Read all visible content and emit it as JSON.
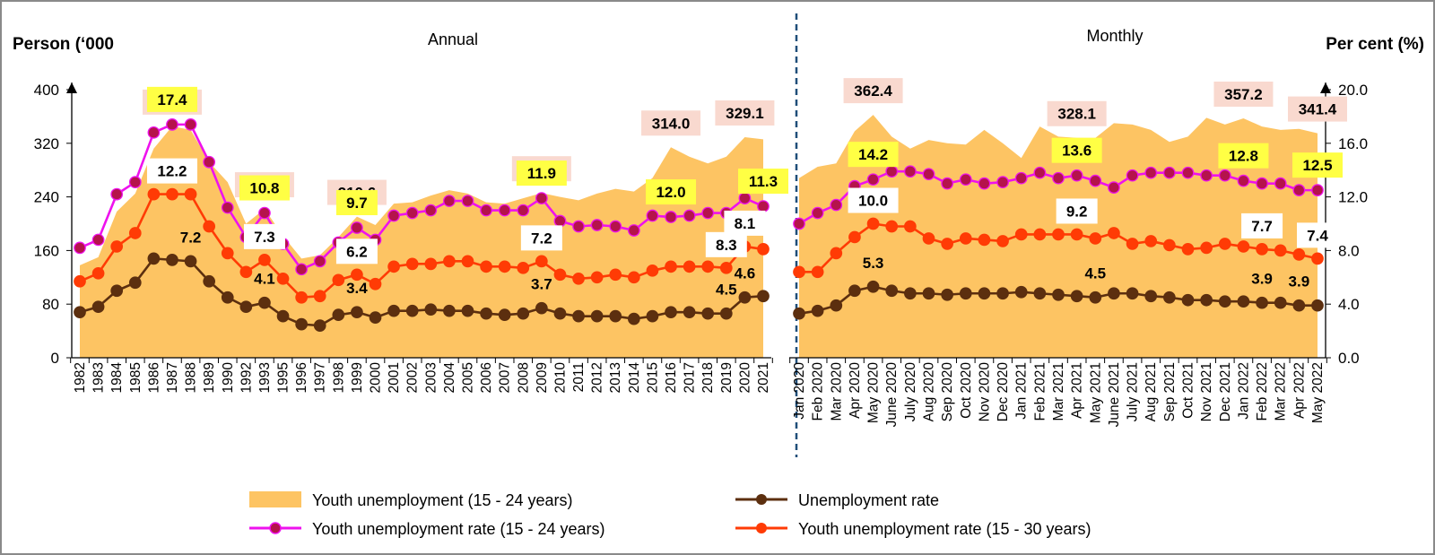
{
  "chart_data": {
    "type": "line",
    "section_titles": {
      "annual": "Annual",
      "monthly": "Monthly"
    },
    "left_axis": {
      "label": "Person  (‘000",
      "ylim": [
        0,
        400
      ],
      "ticks": [
        "0",
        "80",
        "160",
        "240",
        "320",
        "400"
      ]
    },
    "right_axis": {
      "label": "Per cent (%)",
      "ylim": [
        0,
        20
      ],
      "ticks": [
        "0.0",
        "4.0",
        "8.0",
        "12.0",
        "16.0",
        "20.0"
      ]
    },
    "annual": {
      "categories": [
        "1982",
        "1983",
        "1984",
        "1985",
        "1986",
        "1987",
        "1988",
        "1989",
        "1990",
        "1992",
        "1993",
        "1995",
        "1996",
        "1997",
        "1998",
        "1999",
        "2000",
        "2001",
        "2002",
        "2003",
        "2004",
        "2005",
        "2006",
        "2007",
        "2008",
        "2009",
        "2010",
        "2011",
        "2012",
        "2013",
        "2014",
        "2015",
        "2016",
        "2017",
        "2018",
        "2019",
        "2020",
        "2021"
      ],
      "youth_unemployment": [
        138,
        150,
        218,
        245,
        312,
        345.3,
        340,
        292,
        262,
        200,
        222,
        182,
        148,
        153,
        180,
        210.6,
        198,
        230,
        232,
        242,
        250,
        245,
        232,
        230,
        238,
        245.9,
        240,
        235,
        245,
        252,
        248,
        268,
        314,
        300,
        290,
        300,
        329.1,
        326
      ],
      "unemployment_rate": [
        3.4,
        3.8,
        5.0,
        5.6,
        7.4,
        7.3,
        7.2,
        5.7,
        4.5,
        3.8,
        4.1,
        3.1,
        2.5,
        2.4,
        3.2,
        3.4,
        3.0,
        3.5,
        3.5,
        3.6,
        3.5,
        3.5,
        3.3,
        3.2,
        3.3,
        3.7,
        3.3,
        3.1,
        3.1,
        3.1,
        2.9,
        3.1,
        3.4,
        3.4,
        3.3,
        3.3,
        4.5,
        4.6
      ],
      "youth_rate_15_24": [
        8.2,
        8.8,
        12.2,
        13.1,
        16.8,
        17.4,
        17.4,
        14.6,
        11.2,
        9.0,
        10.8,
        8.5,
        6.6,
        7.2,
        8.6,
        9.7,
        8.8,
        10.6,
        10.8,
        11.0,
        11.7,
        11.7,
        11.0,
        11.0,
        11.0,
        11.9,
        10.2,
        9.8,
        9.9,
        9.8,
        9.5,
        10.6,
        10.5,
        10.6,
        10.8,
        10.8,
        11.9,
        11.3
      ],
      "youth_rate_15_30": [
        5.7,
        6.3,
        8.3,
        9.3,
        12.2,
        12.2,
        12.2,
        9.8,
        7.8,
        6.4,
        7.3,
        5.9,
        4.5,
        4.6,
        5.8,
        6.2,
        5.5,
        6.8,
        7.0,
        7.0,
        7.2,
        7.2,
        6.8,
        6.8,
        6.7,
        7.2,
        6.2,
        5.9,
        6.0,
        6.2,
        6.0,
        6.5,
        6.8,
        6.8,
        6.8,
        6.7,
        8.3,
        8.1
      ]
    },
    "monthly": {
      "categories": [
        "Jan 2020",
        "Feb 2020",
        "Mar 2020",
        "Apr 2020",
        "May 2020",
        "June 2020",
        "July 2020",
        "Aug 2020",
        "Sep 2020",
        "Oct 2020",
        "Nov 2020",
        "Dec 2020",
        "Jan 2021",
        "Feb 2021",
        "Mar 2021",
        "Apr 2021",
        "May 2021",
        "June 2021",
        "July 2021",
        "Aug 2021",
        "Sep 2021",
        "Oct 2021",
        "Nov 2021",
        "Dec 2021",
        "Jan 2022",
        "Feb 2022",
        "Mar 2022",
        "Apr 2022",
        "May 2022"
      ],
      "youth_unemployment": [
        268,
        285,
        290,
        338,
        362.4,
        330,
        312,
        325,
        320,
        318,
        340,
        320,
        298,
        345,
        330,
        328.1,
        328,
        350,
        348,
        340,
        322,
        330,
        358,
        348,
        357.2,
        345,
        340,
        341.4,
        335
      ],
      "unemployment_rate": [
        3.3,
        3.5,
        3.9,
        5.0,
        5.3,
        5.0,
        4.8,
        4.8,
        4.7,
        4.8,
        4.8,
        4.8,
        4.9,
        4.8,
        4.7,
        4.6,
        4.5,
        4.8,
        4.8,
        4.6,
        4.5,
        4.3,
        4.3,
        4.2,
        4.2,
        4.1,
        4.1,
        3.9,
        3.9
      ],
      "youth_rate_15_24": [
        10.0,
        10.8,
        11.4,
        12.8,
        13.3,
        13.9,
        13.9,
        13.7,
        13.0,
        13.3,
        13.0,
        13.1,
        13.4,
        13.8,
        13.4,
        13.6,
        13.2,
        12.7,
        13.6,
        13.8,
        13.8,
        13.8,
        13.6,
        13.6,
        13.2,
        13.0,
        13.0,
        12.5,
        12.5
      ],
      "youth_rate_15_30": [
        6.4,
        6.4,
        7.8,
        9.0,
        10.0,
        9.8,
        9.8,
        8.9,
        8.5,
        8.9,
        8.8,
        8.7,
        9.2,
        9.2,
        9.2,
        9.2,
        8.9,
        9.3,
        8.5,
        8.7,
        8.4,
        8.1,
        8.2,
        8.5,
        8.3,
        8.1,
        8.0,
        7.7,
        7.4
      ]
    },
    "series": [
      {
        "key": "youth_unemployment",
        "name": "Youth unemployment (15 - 24 years)",
        "axis": "left",
        "type": "area",
        "color": "#FDC463"
      },
      {
        "key": "unemployment_rate",
        "name": "Unemployment rate",
        "axis": "right",
        "type": "line",
        "color": "#5C2F0F"
      },
      {
        "key": "youth_rate_15_24",
        "name": "Youth unemployment rate (15 - 24 years)",
        "axis": "right",
        "type": "line",
        "color": "#EE12EE"
      },
      {
        "key": "youth_rate_15_30",
        "name": "Youth unemployment rate (15 - 30 years)",
        "axis": "right",
        "type": "line",
        "color": "#FF3B05"
      }
    ],
    "data_labels": [
      {
        "section": "annual",
        "series": "youth_unemployment",
        "category": "1987",
        "text": "345.3"
      },
      {
        "section": "annual",
        "series": "youth_rate_15_24",
        "category": "1987",
        "text": "17.4"
      },
      {
        "section": "annual",
        "series": "youth_rate_15_30",
        "category": "1987",
        "text": "12.2"
      },
      {
        "section": "annual",
        "series": "unemployment_rate",
        "category": "1988",
        "text": "7.2"
      },
      {
        "section": "annual",
        "series": "youth_unemployment",
        "category": "1993",
        "text": "222.0"
      },
      {
        "section": "annual",
        "series": "youth_rate_15_24",
        "category": "1993",
        "text": "10.8"
      },
      {
        "section": "annual",
        "series": "youth_rate_15_30",
        "category": "1993",
        "text": "7.3"
      },
      {
        "section": "annual",
        "series": "unemployment_rate",
        "category": "1993",
        "text": "4.1"
      },
      {
        "section": "annual",
        "series": "youth_unemployment",
        "category": "1999",
        "text": "210.6"
      },
      {
        "section": "annual",
        "series": "youth_rate_15_24",
        "category": "1999",
        "text": "9.7"
      },
      {
        "section": "annual",
        "series": "youth_rate_15_30",
        "category": "1999",
        "text": "6.2"
      },
      {
        "section": "annual",
        "series": "unemployment_rate",
        "category": "1999",
        "text": "3.4"
      },
      {
        "section": "annual",
        "series": "youth_unemployment",
        "category": "2009",
        "text": "245.9"
      },
      {
        "section": "annual",
        "series": "youth_rate_15_24",
        "category": "2009",
        "text": "11.9"
      },
      {
        "section": "annual",
        "series": "youth_rate_15_30",
        "category": "2009",
        "text": "7.2"
      },
      {
        "section": "annual",
        "series": "unemployment_rate",
        "category": "2009",
        "text": "3.7"
      },
      {
        "section": "annual",
        "series": "youth_unemployment",
        "category": "2016",
        "text": "314.0"
      },
      {
        "section": "annual",
        "series": "youth_rate_15_24",
        "category": "2016",
        "text": "12.0"
      },
      {
        "section": "annual",
        "series": "youth_unemployment",
        "category": "2020",
        "text": "329.1"
      },
      {
        "section": "annual",
        "series": "youth_rate_15_24",
        "category": "2021",
        "text": "11.3"
      },
      {
        "section": "annual",
        "series": "youth_rate_15_30",
        "category": "2019",
        "text": "8.3"
      },
      {
        "section": "annual",
        "series": "youth_rate_15_30",
        "category": "2020",
        "text": "8.1"
      },
      {
        "section": "annual",
        "series": "unemployment_rate",
        "category": "2019",
        "text": "4.5"
      },
      {
        "section": "annual",
        "series": "unemployment_rate",
        "category": "2020",
        "text": "4.6"
      },
      {
        "section": "monthly",
        "series": "youth_unemployment",
        "category": "May 2020",
        "text": "362.4"
      },
      {
        "section": "monthly",
        "series": "youth_rate_15_24",
        "category": "May 2020",
        "text": "14.2"
      },
      {
        "section": "monthly",
        "series": "youth_rate_15_30",
        "category": "May 2020",
        "text": "10.0"
      },
      {
        "section": "monthly",
        "series": "unemployment_rate",
        "category": "May 2020",
        "text": "5.3"
      },
      {
        "section": "monthly",
        "series": "youth_unemployment",
        "category": "Apr 2021",
        "text": "328.1"
      },
      {
        "section": "monthly",
        "series": "youth_rate_15_24",
        "category": "Apr 2021",
        "text": "13.6"
      },
      {
        "section": "monthly",
        "series": "youth_rate_15_30",
        "category": "Apr 2021",
        "text": "9.2"
      },
      {
        "section": "monthly",
        "series": "unemployment_rate",
        "category": "May 2021",
        "text": "4.5"
      },
      {
        "section": "monthly",
        "series": "youth_unemployment",
        "category": "Jan 2022",
        "text": "357.2"
      },
      {
        "section": "monthly",
        "series": "youth_rate_15_24",
        "category": "Jan 2022",
        "text": "12.8"
      },
      {
        "section": "monthly",
        "series": "youth_rate_15_30",
        "category": "Feb 2022",
        "text": "7.7"
      },
      {
        "section": "monthly",
        "series": "unemployment_rate",
        "category": "Feb 2022",
        "text": "3.9"
      },
      {
        "section": "monthly",
        "series": "youth_unemployment",
        "category": "May 2022",
        "text": "341.4"
      },
      {
        "section": "monthly",
        "series": "youth_rate_15_24",
        "category": "May 2022",
        "text": "12.5"
      },
      {
        "section": "monthly",
        "series": "youth_rate_15_30",
        "category": "May 2022",
        "text": "7.4"
      },
      {
        "section": "monthly",
        "series": "unemployment_rate",
        "category": "Apr 2022",
        "text": "3.9"
      }
    ],
    "label_styles": {
      "youth_unemployment": {
        "bg": "#F9D9CF"
      },
      "youth_rate_15_24": {
        "bg": "#FFFF44"
      },
      "youth_rate_15_30": {
        "bg": "#FFFFFF"
      },
      "unemployment_rate": {
        "bg": "none"
      }
    },
    "legend_position": "bottom"
  }
}
